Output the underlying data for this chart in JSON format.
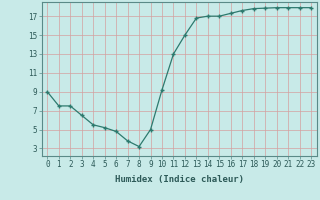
{
  "x": [
    0,
    1,
    2,
    3,
    4,
    5,
    6,
    7,
    8,
    9,
    10,
    11,
    12,
    13,
    14,
    15,
    16,
    17,
    18,
    19,
    20,
    21,
    22,
    23
  ],
  "y": [
    9.0,
    7.5,
    7.5,
    6.5,
    5.5,
    5.2,
    4.8,
    3.8,
    3.2,
    5.0,
    9.2,
    13.0,
    15.0,
    16.8,
    17.0,
    17.0,
    17.3,
    17.6,
    17.8,
    17.85,
    17.9,
    17.9,
    17.9,
    17.9
  ],
  "line_color": "#2d7a6e",
  "marker": "+",
  "bg_color": "#c8eae8",
  "grid_color": "#d4a0a0",
  "title": "",
  "xlabel": "Humidex (Indice chaleur)",
  "ylabel": "",
  "xlim": [
    -0.5,
    23.5
  ],
  "ylim": [
    2.2,
    18.5
  ],
  "yticks": [
    3,
    5,
    7,
    9,
    11,
    13,
    15,
    17
  ],
  "xticks": [
    0,
    1,
    2,
    3,
    4,
    5,
    6,
    7,
    8,
    9,
    10,
    11,
    12,
    13,
    14,
    15,
    16,
    17,
    18,
    19,
    20,
    21,
    22,
    23
  ],
  "xtick_labels": [
    "0",
    "1",
    "2",
    "3",
    "4",
    "5",
    "6",
    "7",
    "8",
    "9",
    "10",
    "11",
    "12",
    "13",
    "14",
    "15",
    "16",
    "17",
    "18",
    "19",
    "20",
    "21",
    "22",
    "23"
  ],
  "label_fontsize": 6.5,
  "tick_fontsize": 5.5
}
